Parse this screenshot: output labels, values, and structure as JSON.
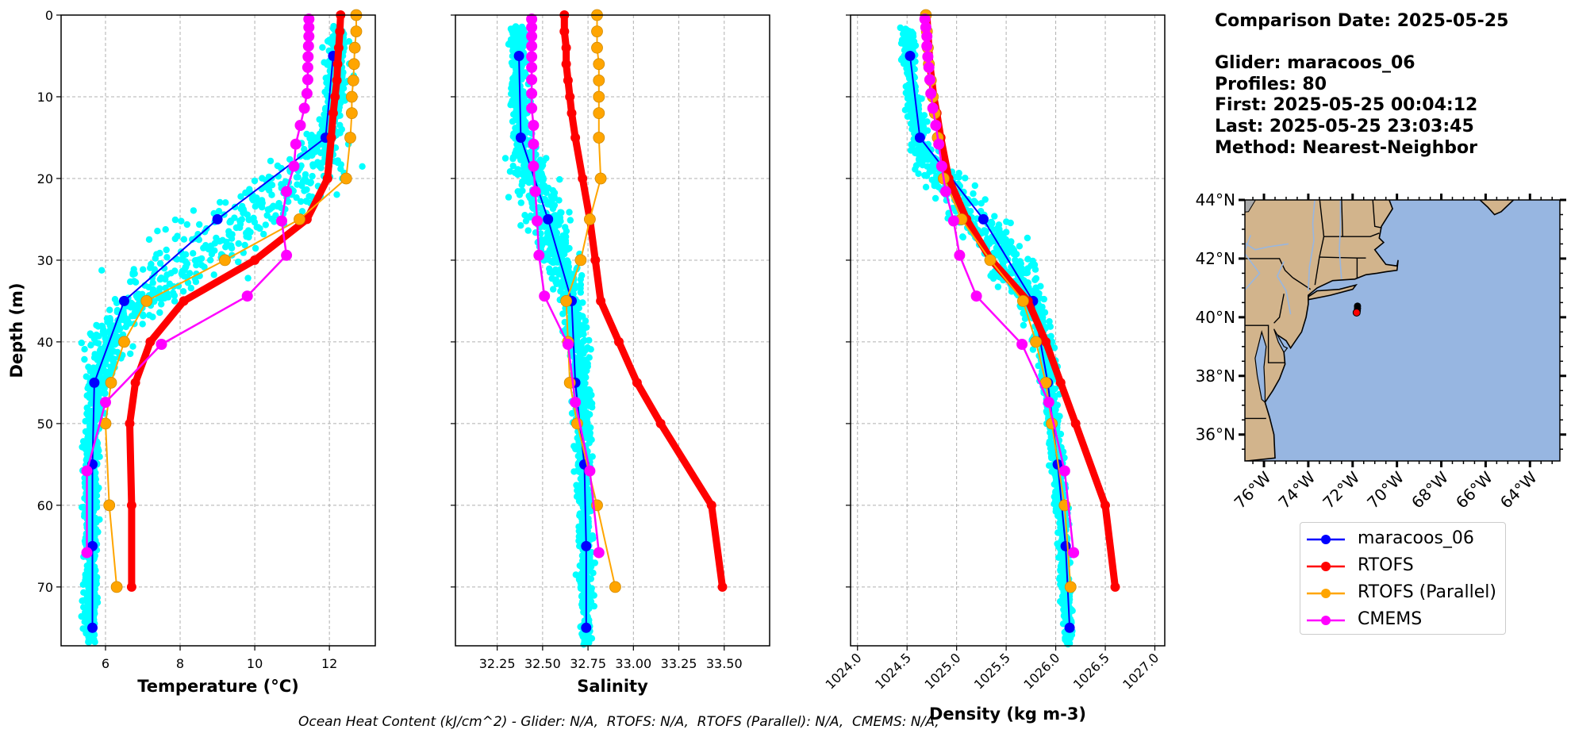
{
  "info": {
    "comparison_date": "Comparison Date: 2025-05-25",
    "glider": "Glider: maracoos_06",
    "profiles": "Profiles: 80",
    "first": "First: 2025-05-25 00:04:12",
    "last": "Last: 2025-05-25 23:03:45",
    "method": "Method: Nearest-Neighbor"
  },
  "footnote": "Ocean Heat Content (kJ/cm^2) - Glider: N/A,  RTOFS: N/A,  RTOFS (Parallel): N/A,  CMEMS: N/A,",
  "legend": {
    "items": [
      {
        "label": "maracoos_06",
        "color": "#0000ff"
      },
      {
        "label": "RTOFS",
        "color": "#ff0000"
      },
      {
        "label": "RTOFS (Parallel)",
        "color": "#ffa500"
      },
      {
        "label": "CMEMS",
        "color": "#ff00ff"
      }
    ]
  },
  "colors": {
    "glider": "#0000ff",
    "rtofs": "#ff0000",
    "rtofs_parallel": "#ffa500",
    "cmems": "#ff00ff",
    "scatter": "#00ffff",
    "land": "#d2b48c",
    "ocean": "#97b6e1",
    "river": "#97b6e1"
  },
  "chart_data": [
    {
      "type": "line",
      "title": "",
      "xlabel": "Temperature (°C)",
      "ylabel": "Depth (m)",
      "xlim": [
        4.81,
        13.23
      ],
      "ylim": [
        77.2,
        0
      ],
      "xticks": [
        6,
        8,
        10,
        12
      ],
      "xtick_labels": [
        "6",
        "8",
        "10",
        "12"
      ],
      "yticks": [
        0,
        10,
        20,
        30,
        40,
        50,
        60,
        70
      ],
      "ytick_labels": [
        "0",
        "10",
        "20",
        "30",
        "40",
        "50",
        "60",
        "70"
      ],
      "grid": true,
      "scatter_profile": {
        "name": "glider-raw",
        "depth_knots": [
          1.5,
          5,
          12,
          15,
          18,
          22,
          26,
          30,
          35,
          40,
          45,
          50,
          60,
          70,
          77
        ],
        "center": [
          12.2,
          12.2,
          12.1,
          11.9,
          11.6,
          10.6,
          9.5,
          8.3,
          6.9,
          6.1,
          5.8,
          5.65,
          5.6,
          5.6,
          5.55
        ],
        "spread": [
          0.15,
          0.3,
          0.35,
          0.5,
          1.1,
          1.7,
          1.8,
          1.6,
          1.0,
          0.6,
          0.35,
          0.25,
          0.2,
          0.2,
          0.15
        ]
      },
      "series": [
        {
          "name": "maracoos_06",
          "key": "glider",
          "depth": [
            5,
            15,
            25,
            35,
            45,
            55,
            65,
            75
          ],
          "values": [
            12.1,
            11.9,
            9.0,
            6.5,
            5.7,
            5.65,
            5.65,
            5.65
          ]
        },
        {
          "name": "RTOFS",
          "key": "rtofs",
          "depth": [
            0,
            2,
            4,
            6,
            8,
            10,
            12,
            15,
            20,
            25,
            30,
            35,
            40,
            45,
            50,
            60,
            70
          ],
          "values": [
            12.3,
            12.28,
            12.25,
            12.22,
            12.2,
            12.15,
            12.1,
            12.05,
            11.95,
            11.4,
            10.0,
            8.1,
            7.2,
            6.8,
            6.65,
            6.7,
            6.7
          ]
        },
        {
          "name": "RTOFS (Parallel)",
          "key": "rtofs_parallel",
          "depth": [
            0,
            2,
            4,
            6,
            8,
            10,
            12,
            15,
            20,
            25,
            30,
            35,
            40,
            45,
            50,
            60,
            70
          ],
          "values": [
            12.72,
            12.72,
            12.68,
            12.66,
            12.64,
            12.6,
            12.6,
            12.56,
            12.45,
            11.2,
            9.2,
            7.1,
            6.5,
            6.15,
            6.0,
            6.1,
            6.3
          ]
        },
        {
          "name": "CMEMS",
          "key": "cmems",
          "depth": [
            0.5,
            1.5,
            2.6,
            3.8,
            5.1,
            6.4,
            7.9,
            9.6,
            11.4,
            13.5,
            15.8,
            18.5,
            21.6,
            25.2,
            29.4,
            34.4,
            40.3,
            47.4,
            55.8,
            65.8
          ],
          "values": [
            11.45,
            11.45,
            11.45,
            11.44,
            11.43,
            11.42,
            11.42,
            11.4,
            11.33,
            11.22,
            11.1,
            11.05,
            10.85,
            10.72,
            10.85,
            9.8,
            7.5,
            6.0,
            5.5,
            5.5
          ]
        }
      ]
    },
    {
      "type": "line",
      "title": "",
      "xlabel": "Salinity",
      "ylabel": "",
      "xlim": [
        32.02,
        33.75
      ],
      "ylim": [
        77.2,
        0
      ],
      "xticks": [
        32.25,
        32.5,
        32.75,
        33.0,
        33.25,
        33.5
      ],
      "xtick_labels": [
        "32.25",
        "32.50",
        "32.75",
        "33.00",
        "33.25",
        "33.50"
      ],
      "yticks": [
        0,
        10,
        20,
        30,
        40,
        50,
        60,
        70
      ],
      "grid": true,
      "scatter_profile": {
        "name": "glider-raw",
        "depth_knots": [
          1.5,
          5,
          12,
          15,
          18,
          22,
          26,
          30,
          35,
          40,
          45,
          50,
          60,
          70,
          77
        ],
        "center": [
          32.37,
          32.36,
          32.37,
          32.38,
          32.42,
          32.47,
          32.53,
          32.6,
          32.66,
          32.69,
          32.71,
          32.72,
          32.73,
          32.74,
          32.74
        ],
        "spread": [
          0.05,
          0.05,
          0.05,
          0.06,
          0.1,
          0.14,
          0.12,
          0.1,
          0.07,
          0.06,
          0.05,
          0.05,
          0.04,
          0.04,
          0.03
        ]
      },
      "series": [
        {
          "name": "maracoos_06",
          "key": "glider",
          "depth": [
            5,
            15,
            25,
            35,
            45,
            55,
            65,
            75
          ],
          "values": [
            32.37,
            32.38,
            32.53,
            32.66,
            32.68,
            32.73,
            32.74,
            32.74
          ]
        },
        {
          "name": "RTOFS",
          "key": "rtofs",
          "depth": [
            0,
            2,
            4,
            6,
            8,
            10,
            12,
            15,
            20,
            25,
            30,
            35,
            40,
            45,
            50,
            60,
            70
          ],
          "values": [
            32.62,
            32.62,
            32.63,
            32.63,
            32.64,
            32.65,
            32.66,
            32.68,
            32.72,
            32.76,
            32.79,
            32.82,
            32.92,
            33.02,
            33.15,
            33.43,
            33.49
          ]
        },
        {
          "name": "RTOFS (Parallel)",
          "key": "rtofs_parallel",
          "depth": [
            0,
            2,
            4,
            6,
            8,
            10,
            12,
            15,
            20,
            25,
            30,
            35,
            40,
            45,
            50,
            60,
            70
          ],
          "values": [
            32.8,
            32.8,
            32.8,
            32.81,
            32.81,
            32.81,
            32.81,
            32.81,
            32.82,
            32.76,
            32.71,
            32.63,
            32.64,
            32.65,
            32.69,
            32.8,
            32.9
          ]
        },
        {
          "name": "CMEMS",
          "key": "cmems",
          "depth": [
            0.5,
            1.5,
            2.6,
            3.8,
            5.1,
            6.4,
            7.9,
            9.6,
            11.4,
            13.5,
            15.8,
            18.5,
            21.6,
            25.2,
            29.4,
            34.4,
            40.3,
            47.4,
            55.8,
            65.8
          ],
          "values": [
            32.44,
            32.44,
            32.44,
            32.44,
            32.44,
            32.44,
            32.44,
            32.44,
            32.44,
            32.45,
            32.45,
            32.45,
            32.46,
            32.47,
            32.48,
            32.51,
            32.64,
            32.68,
            32.76,
            32.81
          ]
        }
      ]
    },
    {
      "type": "line",
      "title": "",
      "xlabel": "Density (kg m-3)",
      "ylabel": "",
      "xlim": [
        1023.93,
        1027.1
      ],
      "ylim": [
        77.2,
        0
      ],
      "xticks": [
        1024.0,
        1024.5,
        1025.0,
        1025.5,
        1026.0,
        1026.5,
        1027.0
      ],
      "xtick_labels": [
        "1024.0",
        "1024.5",
        "1025.0",
        "1025.5",
        "1026.0",
        "1026.5",
        "1027.0"
      ],
      "yticks": [
        0,
        10,
        20,
        30,
        40,
        50,
        60,
        70
      ],
      "grid": true,
      "scatter_profile": {
        "name": "glider-raw",
        "depth_knots": [
          1.5,
          5,
          12,
          15,
          18,
          22,
          26,
          30,
          35,
          40,
          45,
          50,
          60,
          70,
          77
        ],
        "center": [
          1024.5,
          1024.52,
          1024.58,
          1024.63,
          1024.75,
          1025.0,
          1025.3,
          1025.5,
          1025.75,
          1025.87,
          1025.93,
          1025.98,
          1026.05,
          1026.1,
          1026.13
        ],
        "spread": [
          0.06,
          0.07,
          0.08,
          0.1,
          0.2,
          0.3,
          0.32,
          0.28,
          0.14,
          0.1,
          0.08,
          0.07,
          0.06,
          0.05,
          0.04
        ]
      },
      "series": [
        {
          "name": "maracoos_06",
          "key": "glider",
          "depth": [
            5,
            15,
            25,
            35,
            45,
            55,
            65,
            75
          ],
          "values": [
            1024.53,
            1024.63,
            1025.27,
            1025.77,
            1025.92,
            1026.02,
            1026.1,
            1026.14
          ]
        },
        {
          "name": "RTOFS",
          "key": "rtofs",
          "depth": [
            0,
            2,
            4,
            6,
            8,
            10,
            12,
            15,
            20,
            25,
            30,
            35,
            40,
            45,
            50,
            60,
            70
          ],
          "values": [
            1024.7,
            1024.71,
            1024.72,
            1024.73,
            1024.75,
            1024.77,
            1024.8,
            1024.84,
            1024.92,
            1025.1,
            1025.35,
            1025.72,
            1025.9,
            1026.05,
            1026.2,
            1026.5,
            1026.6
          ]
        },
        {
          "name": "RTOFS (Parallel)",
          "key": "rtofs_parallel",
          "depth": [
            0,
            2,
            4,
            6,
            8,
            10,
            12,
            15,
            20,
            25,
            30,
            35,
            40,
            45,
            50,
            60,
            70
          ],
          "values": [
            1024.69,
            1024.7,
            1024.71,
            1024.72,
            1024.74,
            1024.76,
            1024.78,
            1024.81,
            1024.87,
            1025.05,
            1025.34,
            1025.67,
            1025.8,
            1025.9,
            1025.96,
            1026.09,
            1026.15
          ]
        },
        {
          "name": "CMEMS",
          "key": "cmems",
          "depth": [
            0.5,
            1.5,
            2.6,
            3.8,
            5.1,
            6.4,
            7.9,
            9.6,
            11.4,
            13.5,
            15.8,
            18.5,
            21.6,
            25.2,
            29.4,
            34.4,
            40.3,
            47.4,
            55.8,
            65.8
          ],
          "values": [
            1024.68,
            1024.69,
            1024.7,
            1024.7,
            1024.71,
            1024.72,
            1024.73,
            1024.74,
            1024.76,
            1024.79,
            1024.82,
            1024.85,
            1024.89,
            1024.97,
            1025.03,
            1025.2,
            1025.66,
            1025.93,
            1026.09,
            1026.18
          ]
        }
      ]
    },
    {
      "type": "map",
      "title": "",
      "lon_range": [
        -76.86,
        -62.65
      ],
      "lat_range": [
        35.1,
        44.0
      ],
      "lon_ticks": [
        -76,
        -74,
        -72,
        -70,
        -68,
        -66,
        -64
      ],
      "lon_tick_labels": [
        "76°W",
        "74°W",
        "72°W",
        "70°W",
        "68°W",
        "66°W",
        "64°W"
      ],
      "lat_ticks": [
        36,
        38,
        40,
        42,
        44
      ],
      "lat_tick_labels": [
        "36°N",
        "38°N",
        "40°N",
        "42°N",
        "44°N"
      ],
      "glider_track": {
        "lon": [
          -71.78,
          -71.78,
          -71.79
        ],
        "lat": [
          40.38,
          40.3,
          40.22
        ]
      },
      "glider_position": {
        "lon": -71.82,
        "lat": 40.16
      }
    }
  ]
}
